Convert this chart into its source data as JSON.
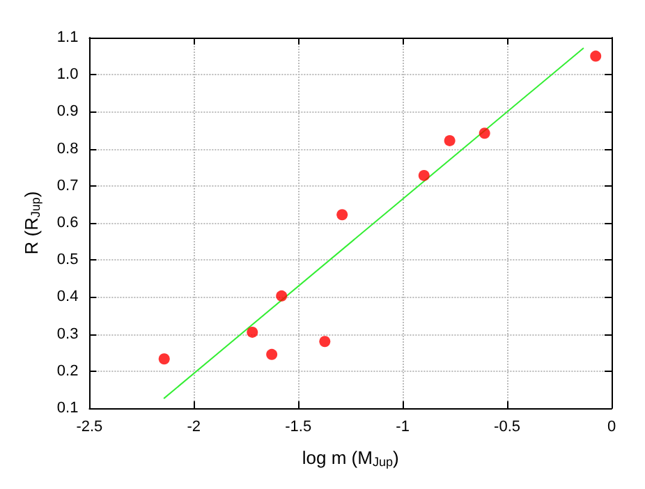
{
  "chart_data": {
    "type": "scatter",
    "xlabel": "log m (M$_{Jup}$)",
    "ylabel": "R (R$_{Jup}$)",
    "x": [
      -2.142,
      -1.72,
      -1.627,
      -1.58,
      -1.373,
      -1.29,
      -0.898,
      -0.775,
      -0.608,
      -0.076
    ],
    "series": [
      {
        "color": "#ff0000",
        "values": [
          0.233,
          0.305,
          0.245,
          0.403,
          0.28,
          0.622,
          0.728,
          0.822,
          0.842,
          1.05
        ],
        "marker": "circle"
      },
      {
        "type": "line",
        "color": "#33ee33",
        "x": [
          -2.142,
          -0.136
        ],
        "values": [
          0.127,
          1.071
        ],
        "marker": "none",
        "line_style": "solid"
      }
    ],
    "xlim": [
      -2.5,
      0
    ],
    "xticks": [
      -2.5,
      -2,
      -1.5,
      -1,
      -0.5,
      0
    ],
    "ylim": [
      0.1,
      1.1
    ],
    "yticks": [
      {
        "value": 0.1,
        "label": "0.1"
      },
      {
        "value": 0.2,
        "label": "0.2"
      },
      {
        "value": 0.3,
        "label": "0.3"
      },
      {
        "value": 0.4,
        "label": "0.4"
      },
      {
        "value": 0.5,
        "label": "0.5"
      },
      {
        "value": 0.6,
        "label": "0.6"
      },
      {
        "value": 0.7,
        "label": "0.7"
      },
      {
        "value": 0.8,
        "label": "0.8"
      },
      {
        "value": 0.9,
        "label": "0.9"
      },
      {
        "value": 1.0,
        "label": "1.0"
      },
      {
        "value": 1.1,
        "label": "1.1"
      }
    ],
    "grid": true
  }
}
